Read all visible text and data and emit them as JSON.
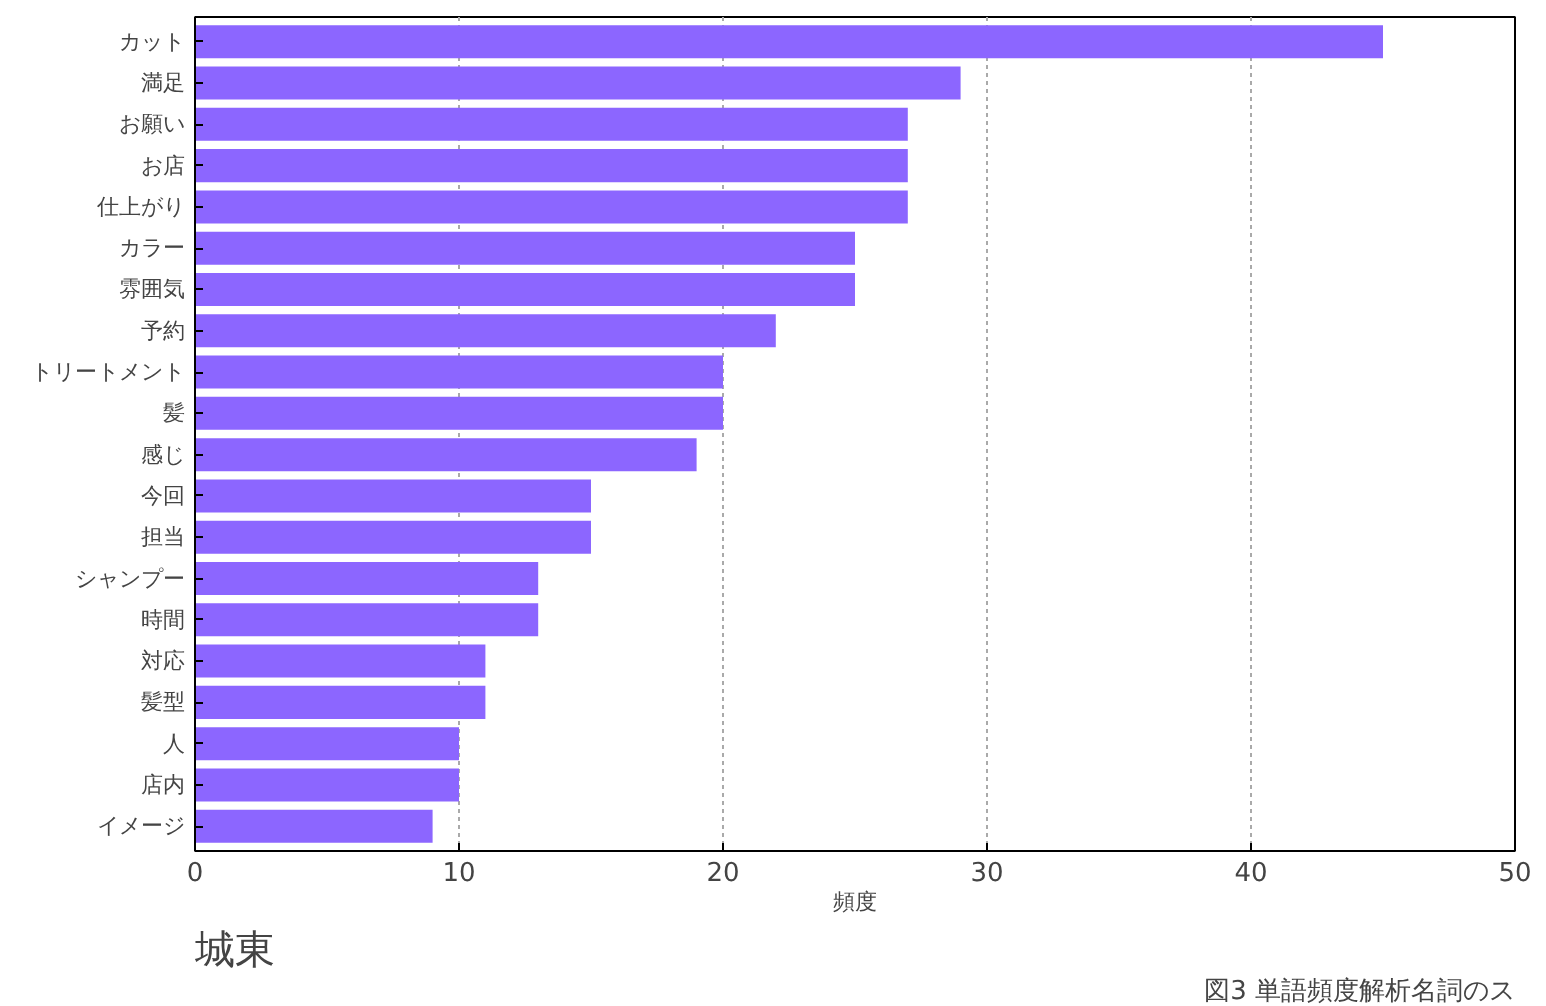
{
  "chart_data": {
    "type": "bar",
    "orientation": "horizontal",
    "xlabel": "頻度",
    "categories": [
      "カット",
      "満足",
      "お願い",
      "お店",
      "仕上がり",
      "カラー",
      "雰囲気",
      "予約",
      "トリートメント",
      "髪",
      "感じ",
      "今回",
      "担当",
      "シャンプー",
      "時間",
      "対応",
      "髪型",
      "人",
      "店内",
      "イメージ"
    ],
    "values": [
      45,
      29,
      27,
      27,
      27,
      25,
      25,
      22,
      20,
      20,
      19,
      15,
      15,
      13,
      13,
      11,
      11,
      10,
      10,
      9
    ],
    "color": "#8c66ff",
    "xlim": [
      0,
      50
    ],
    "xticks": [
      0,
      10,
      20,
      30,
      40,
      50
    ],
    "grid": "x",
    "annotations": [
      "城東",
      "図3 単語頻度解析名詞のス"
    ]
  }
}
